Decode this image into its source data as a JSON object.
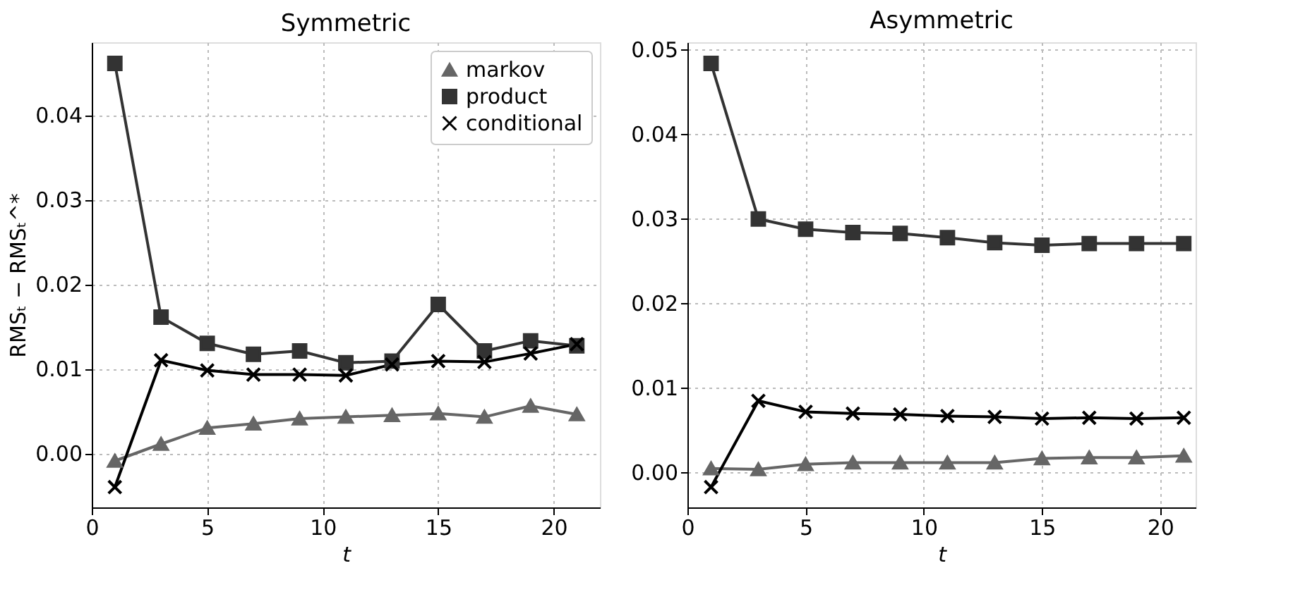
{
  "chart_data": [
    {
      "type": "line",
      "title": "Symmetric",
      "xlabel": "t",
      "ylabel": "RMSₜ − RMSₜ^*",
      "x": [
        1,
        3,
        5,
        7,
        9,
        11,
        13,
        15,
        17,
        19,
        21
      ],
      "xlim": [
        0,
        22
      ],
      "xticks": [
        0,
        5,
        10,
        15,
        20
      ],
      "ylim": [
        -0.0064,
        0.0486
      ],
      "yticks": [
        {
          "value": 0,
          "label": "0.00"
        },
        {
          "value": 0.01,
          "label": "0.01"
        },
        {
          "value": 0.02,
          "label": "0.02"
        },
        {
          "value": 0.03,
          "label": "0.03"
        },
        {
          "value": 0.04,
          "label": "0.04"
        }
      ],
      "grid": true,
      "legend": "top right",
      "line_style": "solid",
      "series": [
        {
          "name": "markov",
          "color": "#666666",
          "marker": "triangle",
          "values": [
            -0.0009,
            0.0011,
            0.003,
            0.0035,
            0.0041,
            0.0043,
            0.0045,
            0.0047,
            0.0043,
            0.0056,
            0.0046
          ]
        },
        {
          "name": "product",
          "color": "#333333",
          "marker": "square",
          "values": [
            0.0461,
            0.0161,
            0.013,
            0.0117,
            0.0121,
            0.0107,
            0.0109,
            0.0176,
            0.0121,
            0.0133,
            0.0127
          ]
        },
        {
          "name": "conditional",
          "color": "#000000",
          "marker": "cross",
          "values": [
            -0.004,
            0.011,
            0.0098,
            0.0093,
            0.0093,
            0.0092,
            0.0105,
            0.0109,
            0.0108,
            0.0118,
            0.0129
          ]
        }
      ]
    },
    {
      "type": "line",
      "title": "Asymmetric",
      "xlabel": "t",
      "x": [
        1,
        3,
        5,
        7,
        9,
        11,
        13,
        15,
        17,
        19,
        21
      ],
      "xlim": [
        0,
        21.5
      ],
      "xticks": [
        0,
        5,
        10,
        15,
        20
      ],
      "ylim": [
        -0.0042,
        0.0508
      ],
      "yticks": [
        {
          "value": 0,
          "label": "0.00"
        },
        {
          "value": 0.01,
          "label": "0.01"
        },
        {
          "value": 0.02,
          "label": "0.02"
        },
        {
          "value": 0.03,
          "label": "0.03"
        },
        {
          "value": 0.04,
          "label": "0.04"
        },
        {
          "value": 0.05,
          "label": "0.05"
        }
      ],
      "grid": true,
      "legend": false,
      "line_style": "solid",
      "series": [
        {
          "color": "#666666",
          "marker": "triangle",
          "values": [
            0.0004,
            0.0003,
            0.0009,
            0.0011,
            0.0011,
            0.0011,
            0.0011,
            0.0016,
            0.0017,
            0.0017,
            0.0019
          ]
        },
        {
          "color": "#333333",
          "marker": "square",
          "values": [
            0.0483,
            0.0299,
            0.0287,
            0.0283,
            0.0282,
            0.0277,
            0.0271,
            0.0268,
            0.027,
            0.027,
            0.027
          ]
        },
        {
          "color": "#000000",
          "marker": "cross",
          "values": [
            -0.0018,
            0.0084,
            0.0071,
            0.0069,
            0.0068,
            0.0066,
            0.0065,
            0.0063,
            0.0064,
            0.0063,
            0.0064
          ]
        }
      ]
    }
  ]
}
